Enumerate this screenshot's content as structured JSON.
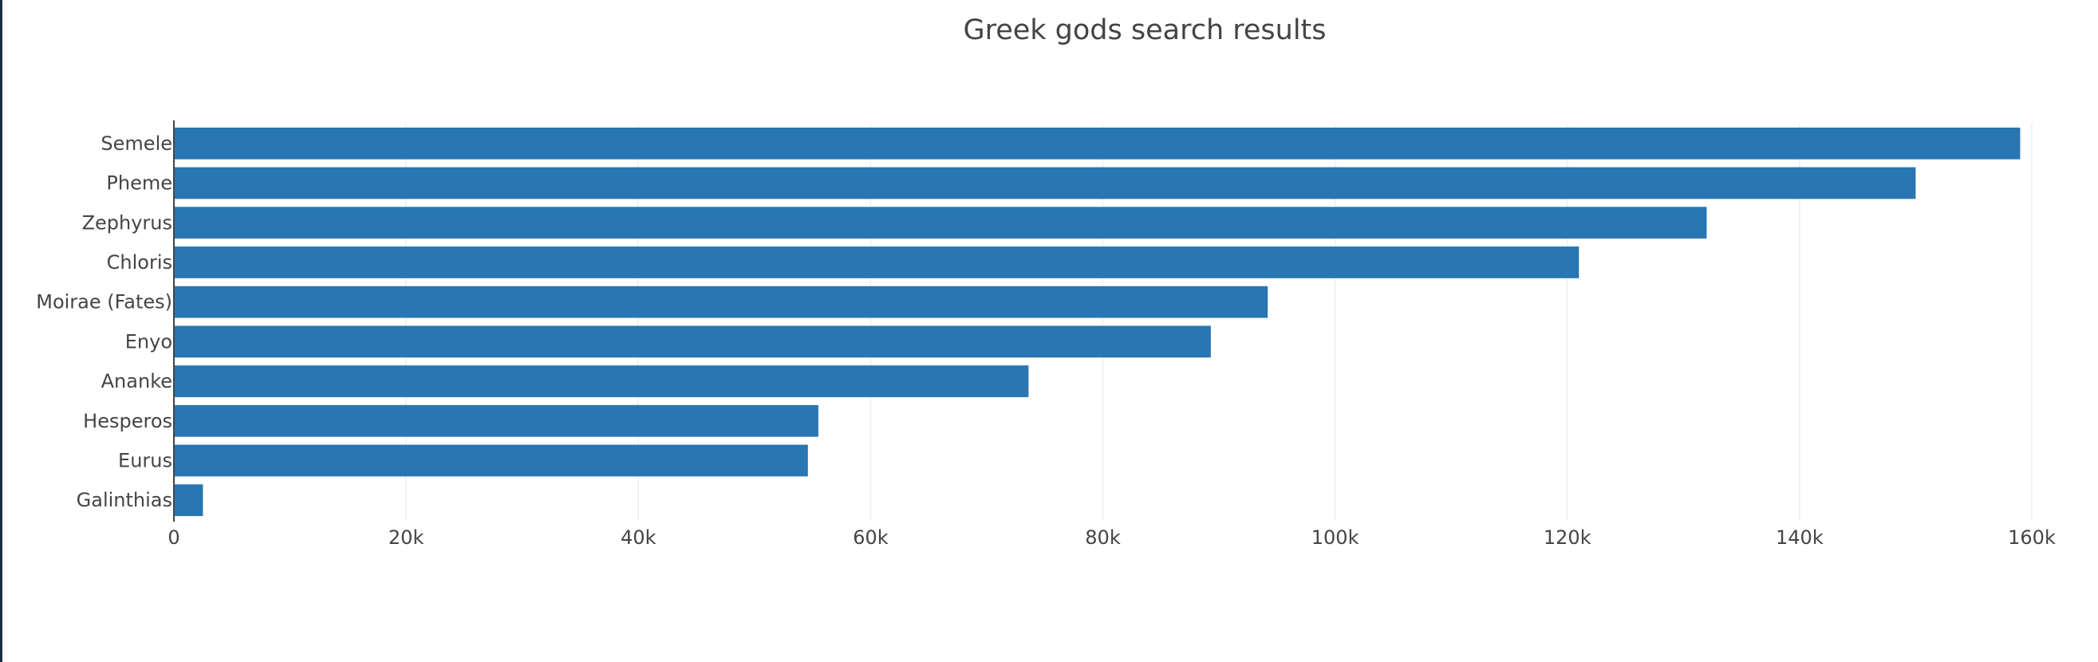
{
  "chart_data": {
    "type": "bar",
    "orientation": "horizontal",
    "title": "Greek gods search results",
    "xlabel": "",
    "ylabel": "",
    "categories": [
      "Semele",
      "Pheme",
      "Zephyrus",
      "Chloris",
      "Moirae (Fates)",
      "Enyo",
      "Ananke",
      "Hesperos",
      "Eurus",
      "Galinthias"
    ],
    "values": [
      159000,
      150000,
      132000,
      121000,
      94200,
      89300,
      73600,
      55500,
      54600,
      2500
    ],
    "xlim": [
      0,
      160000
    ],
    "xticks": [
      0,
      20000,
      40000,
      60000,
      80000,
      100000,
      120000,
      140000,
      160000
    ],
    "xtick_labels": [
      "0",
      "20k",
      "40k",
      "60k",
      "80k",
      "100k",
      "120k",
      "140k",
      "160k"
    ],
    "grid": "vertical",
    "legend": "none",
    "bar_color": "#2876b2"
  }
}
